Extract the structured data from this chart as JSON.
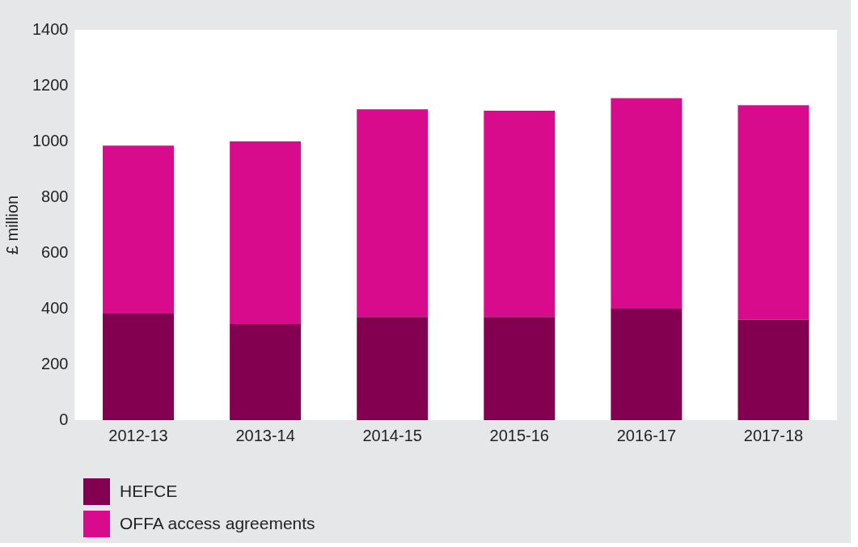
{
  "chart_data": {
    "type": "bar",
    "ylabel": "£ million",
    "categories": [
      "2012-13",
      "2013-14",
      "2014-15",
      "2015-16",
      "2016-17",
      "2017-18"
    ],
    "series": [
      {
        "name": "HEFCE",
        "color": "#82004f",
        "values": [
          385,
          345,
          370,
          370,
          400,
          360
        ]
      },
      {
        "name": "OFFA access agreements",
        "color": "#d80b8c",
        "values": [
          600,
          655,
          745,
          740,
          755,
          770
        ]
      }
    ],
    "stacked": true,
    "ylim": [
      0,
      1400
    ],
    "yticks": [
      0,
      200,
      400,
      600,
      800,
      1000,
      1200,
      1400
    ],
    "grid": false,
    "legend": "bottom left"
  }
}
